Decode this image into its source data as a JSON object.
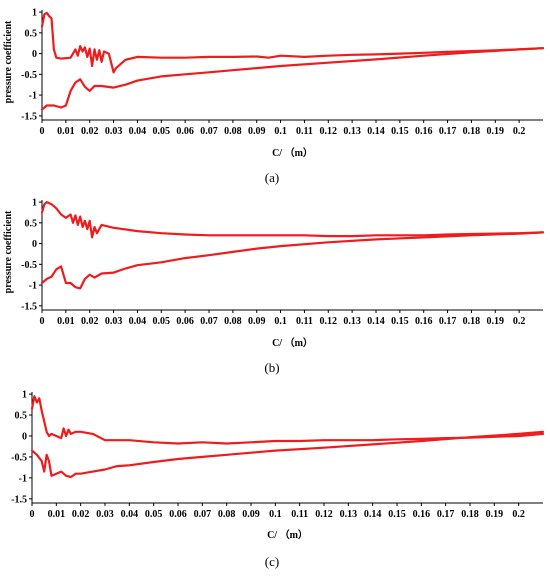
{
  "colors": {
    "curve": "#ee1c1c",
    "axis": "#000000"
  },
  "chart_data": [
    {
      "type": "line",
      "caption": "(a)",
      "xlabel": "C/ （m）",
      "ylabel": "pressure coefficient",
      "xlim": [
        0,
        0.21
      ],
      "ylim": [
        -1.6,
        1.05
      ],
      "xticks": [
        0,
        0.01,
        0.02,
        0.03,
        0.04,
        0.05,
        0.06,
        0.07,
        0.08,
        0.09,
        0.1,
        0.11,
        0.12,
        0.13,
        0.14,
        0.15,
        0.16,
        0.17,
        0.18,
        0.19,
        0.2
      ],
      "xtick_labels": [
        "0",
        "0.01",
        "0.02",
        "0.03",
        "0.04",
        "0.05",
        "0.06",
        "0.07",
        "0.08",
        "0.09",
        "0.1",
        "0.11",
        "0.12",
        "0.13",
        "0.14",
        "0.15",
        "0.16",
        "0.17",
        "0.18",
        "0.19",
        "0.2"
      ],
      "yticks": [
        1,
        0.5,
        0,
        -0.5,
        -1,
        -1.5
      ],
      "ytick_labels": [
        "1",
        "0.5",
        "0",
        "-0.5",
        "-1",
        "-1.5"
      ],
      "series": [
        {
          "x": [
            0,
            0.001,
            0.002,
            0.003,
            0.004,
            0.005,
            0.006,
            0.008,
            0.012,
            0.014,
            0.015,
            0.016,
            0.017,
            0.018,
            0.019,
            0.02,
            0.021,
            0.022,
            0.023,
            0.024,
            0.025,
            0.026,
            0.028,
            0.03,
            0.031,
            0.035,
            0.04,
            0.05,
            0.06,
            0.07,
            0.08,
            0.09,
            0.095,
            0.1,
            0.11,
            0.12,
            0.13,
            0.14,
            0.15,
            0.16,
            0.17,
            0.18,
            0.19,
            0.2,
            0.21
          ],
          "y": [
            0.65,
            0.95,
            0.98,
            0.9,
            0.85,
            0.1,
            -0.1,
            -0.12,
            -0.1,
            0.1,
            -0.05,
            0.18,
            0.05,
            0.15,
            -0.08,
            0.12,
            -0.3,
            0.1,
            -0.15,
            0.08,
            -0.2,
            0.05,
            0.0,
            -0.45,
            -0.35,
            -0.15,
            -0.08,
            -0.1,
            -0.1,
            -0.08,
            -0.08,
            -0.07,
            -0.1,
            -0.05,
            -0.08,
            -0.05,
            -0.03,
            -0.02,
            0.0,
            0.02,
            0.04,
            0.06,
            0.08,
            0.1,
            0.13
          ]
        },
        {
          "x": [
            0,
            0.002,
            0.005,
            0.008,
            0.01,
            0.012,
            0.014,
            0.016,
            0.018,
            0.02,
            0.022,
            0.025,
            0.03,
            0.035,
            0.04,
            0.05,
            0.06,
            0.07,
            0.08,
            0.09,
            0.1,
            0.12,
            0.14,
            0.16,
            0.18,
            0.2,
            0.21
          ],
          "y": [
            -1.35,
            -1.25,
            -1.25,
            -1.3,
            -1.25,
            -0.9,
            -0.7,
            -0.62,
            -0.8,
            -0.9,
            -0.78,
            -0.78,
            -0.82,
            -0.75,
            -0.65,
            -0.55,
            -0.5,
            -0.45,
            -0.4,
            -0.35,
            -0.3,
            -0.22,
            -0.14,
            -0.05,
            0.03,
            0.1,
            0.13
          ]
        }
      ]
    },
    {
      "type": "line",
      "caption": "(b)",
      "xlabel": "C/ （m）",
      "ylabel": "pressure coefficient",
      "xlim": [
        0,
        0.21
      ],
      "ylim": [
        -1.6,
        1.05
      ],
      "xticks": [
        0,
        0.01,
        0.02,
        0.03,
        0.04,
        0.05,
        0.06,
        0.07,
        0.08,
        0.09,
        0.1,
        0.11,
        0.12,
        0.13,
        0.14,
        0.15,
        0.16,
        0.17,
        0.18,
        0.19,
        0.2
      ],
      "xtick_labels": [
        "0",
        "0.01",
        "0.02",
        "0.03",
        "0.04",
        "0.05",
        "0.06",
        "0.07",
        "0.08",
        "0.09",
        "0.1",
        "0.11",
        "0.12",
        "0.13",
        "0.14",
        "0.15",
        "0.16",
        "0.17",
        "0.18",
        "0.19",
        "0.2"
      ],
      "yticks": [
        1,
        0.5,
        0,
        -0.5,
        -1,
        -1.5
      ],
      "ytick_labels": [
        "1",
        "0.5",
        "0",
        "-0.5",
        "-1",
        "-1.5"
      ],
      "series": [
        {
          "x": [
            0,
            0.001,
            0.002,
            0.004,
            0.006,
            0.008,
            0.01,
            0.012,
            0.013,
            0.014,
            0.015,
            0.016,
            0.017,
            0.018,
            0.019,
            0.02,
            0.021,
            0.022,
            0.023,
            0.025,
            0.03,
            0.04,
            0.05,
            0.06,
            0.07,
            0.08,
            0.09,
            0.1,
            0.11,
            0.12,
            0.13,
            0.14,
            0.15,
            0.16,
            0.17,
            0.18,
            0.19,
            0.2,
            0.21
          ],
          "y": [
            0.75,
            0.95,
            1.0,
            0.95,
            0.85,
            0.7,
            0.62,
            0.7,
            0.5,
            0.68,
            0.45,
            0.65,
            0.4,
            0.55,
            0.35,
            0.55,
            0.15,
            0.4,
            0.25,
            0.45,
            0.38,
            0.3,
            0.25,
            0.22,
            0.2,
            0.2,
            0.2,
            0.2,
            0.2,
            0.18,
            0.18,
            0.2,
            0.2,
            0.2,
            0.22,
            0.23,
            0.24,
            0.25,
            0.27
          ]
        },
        {
          "x": [
            0,
            0.002,
            0.004,
            0.006,
            0.008,
            0.01,
            0.012,
            0.014,
            0.016,
            0.018,
            0.02,
            0.022,
            0.025,
            0.03,
            0.035,
            0.04,
            0.05,
            0.06,
            0.07,
            0.08,
            0.09,
            0.1,
            0.12,
            0.14,
            0.16,
            0.18,
            0.2,
            0.21
          ],
          "y": [
            -0.95,
            -0.85,
            -0.8,
            -0.62,
            -0.55,
            -0.95,
            -0.95,
            -1.05,
            -1.08,
            -0.85,
            -0.75,
            -0.82,
            -0.72,
            -0.7,
            -0.6,
            -0.52,
            -0.45,
            -0.35,
            -0.28,
            -0.2,
            -0.12,
            -0.06,
            0.03,
            0.1,
            0.15,
            0.2,
            0.24,
            0.27
          ]
        }
      ]
    },
    {
      "type": "line",
      "caption": "(c)",
      "xlabel": "C/ （m）",
      "ylabel": "",
      "xlim": [
        0,
        0.21
      ],
      "ylim": [
        -1.6,
        1.05
      ],
      "xticks": [
        0,
        0.01,
        0.02,
        0.03,
        0.04,
        0.05,
        0.06,
        0.07,
        0.08,
        0.09,
        0.1,
        0.11,
        0.12,
        0.13,
        0.14,
        0.15,
        0.16,
        0.17,
        0.18,
        0.19,
        0.2
      ],
      "xtick_labels": [
        "0",
        "0.01",
        "0.02",
        "0.03",
        "0.04",
        "0.05",
        "0.06",
        "0.07",
        "0.08",
        "0.09",
        "0.1",
        "0.11",
        "0.12",
        "0.13",
        "0.14",
        "0.15",
        "0.16",
        "0.17",
        "0.18",
        "0.19",
        "0.2"
      ],
      "yticks": [
        1,
        0.5,
        0,
        -0.5,
        -1,
        -1.5
      ],
      "ytick_labels": [
        "1",
        "0.5",
        "0",
        "-0.5",
        "-1",
        "-1.5"
      ],
      "series": [
        {
          "x": [
            0,
            0.001,
            0.002,
            0.003,
            0.004,
            0.005,
            0.006,
            0.007,
            0.008,
            0.01,
            0.012,
            0.013,
            0.014,
            0.015,
            0.016,
            0.018,
            0.02,
            0.025,
            0.03,
            0.04,
            0.05,
            0.06,
            0.07,
            0.08,
            0.09,
            0.1,
            0.11,
            0.12,
            0.13,
            0.14,
            0.15,
            0.16,
            0.17,
            0.18,
            0.19,
            0.2,
            0.21
          ],
          "y": [
            0.65,
            0.95,
            0.8,
            0.9,
            0.6,
            0.35,
            0.1,
            0.0,
            0.05,
            0.0,
            -0.05,
            0.18,
            0.0,
            0.15,
            0.05,
            0.1,
            0.1,
            0.05,
            -0.1,
            -0.1,
            -0.15,
            -0.18,
            -0.15,
            -0.18,
            -0.15,
            -0.12,
            -0.12,
            -0.1,
            -0.1,
            -0.1,
            -0.08,
            -0.07,
            -0.05,
            -0.04,
            -0.02,
            0.0,
            0.05
          ]
        },
        {
          "x": [
            0,
            0.002,
            0.004,
            0.005,
            0.006,
            0.007,
            0.008,
            0.01,
            0.012,
            0.014,
            0.016,
            0.018,
            0.02,
            0.025,
            0.03,
            0.035,
            0.04,
            0.05,
            0.06,
            0.07,
            0.08,
            0.09,
            0.1,
            0.12,
            0.14,
            0.16,
            0.18,
            0.2,
            0.21
          ],
          "y": [
            -0.35,
            -0.45,
            -0.6,
            -0.85,
            -0.45,
            -0.6,
            -0.95,
            -0.9,
            -0.85,
            -0.95,
            -0.98,
            -0.9,
            -0.9,
            -0.85,
            -0.8,
            -0.72,
            -0.7,
            -0.62,
            -0.55,
            -0.5,
            -0.45,
            -0.4,
            -0.35,
            -0.28,
            -0.2,
            -0.12,
            -0.03,
            0.05,
            0.1
          ]
        }
      ]
    }
  ]
}
